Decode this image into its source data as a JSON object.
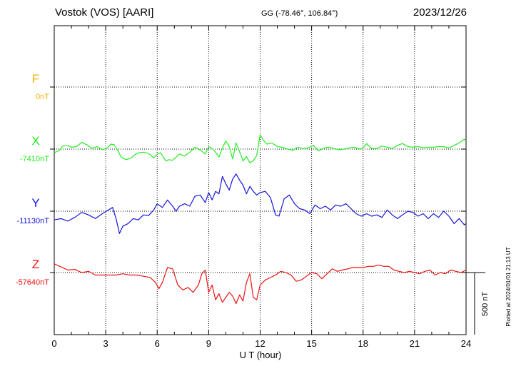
{
  "header": {
    "station": "Vostok (VOS)  [AARI]",
    "coords": "GG (-78.46°, 106.84°)",
    "date": "2023/12/26"
  },
  "footer": {
    "xlabel": "U T (hour)",
    "plotted": "Plotted at 2024/01/01 21:13 UT",
    "scale_label": "500 nT"
  },
  "chart_data": {
    "type": "line",
    "xlabel": "U T (hour)",
    "ylabel": "",
    "xlim": [
      0,
      24
    ],
    "x_ticks": [
      0,
      3,
      6,
      9,
      12,
      15,
      18,
      21,
      24
    ],
    "tick_labels": [
      "0",
      "3",
      "6",
      "9",
      "12",
      "15",
      "18",
      "21",
      "24"
    ],
    "grid": true,
    "scale_nT": 500,
    "series": [
      {
        "name": "F",
        "baseline_label": "0nT",
        "color": "#f0b000",
        "x": [],
        "y": []
      },
      {
        "name": "X",
        "baseline_label": "-7410nT",
        "color": "#22ee22",
        "x": [
          0,
          0.3,
          0.5,
          0.8,
          1.0,
          1.3,
          1.6,
          1.9,
          2.2,
          2.5,
          2.8,
          3.1,
          3.3,
          3.5,
          3.7,
          3.9,
          4.2,
          4.5,
          4.7,
          4.9,
          5.2,
          5.5,
          5.8,
          6.0,
          6.2,
          6.5,
          6.7,
          6.9,
          7.1,
          7.3,
          7.6,
          7.9,
          8.2,
          8.5,
          8.8,
          9.0,
          9.2,
          9.4,
          9.6,
          9.8,
          10.0,
          10.2,
          10.4,
          10.6,
          10.8,
          11.0,
          11.2,
          11.4,
          11.6,
          11.8,
          12.0,
          12.2,
          12.4,
          12.7,
          13.0,
          13.3,
          13.6,
          13.9,
          14.2,
          14.5,
          14.8,
          15.1,
          15.4,
          15.7,
          16.0,
          16.3,
          16.6,
          16.9,
          17.2,
          17.5,
          17.8,
          18.0,
          18.2,
          18.5,
          18.8,
          19.1,
          19.4,
          19.7,
          20.0,
          20.3,
          20.6,
          20.9,
          21.2,
          21.5,
          21.8,
          22.1,
          22.4,
          22.7,
          23.0,
          23.3,
          23.6,
          23.9,
          24.0
        ],
        "y": [
          -30,
          -10,
          25,
          30,
          15,
          20,
          55,
          35,
          5,
          20,
          -5,
          10,
          40,
          35,
          -10,
          -65,
          -85,
          -70,
          -45,
          -30,
          -25,
          -35,
          -70,
          -40,
          -30,
          -95,
          -85,
          -90,
          -65,
          -40,
          -55,
          -25,
          15,
          -5,
          -40,
          20,
          5,
          -25,
          -65,
          10,
          65,
          20,
          -80,
          50,
          -20,
          -95,
          -60,
          -110,
          -95,
          -50,
          115,
          70,
          40,
          50,
          20,
          15,
          0,
          -10,
          15,
          5,
          10,
          30,
          -15,
          10,
          15,
          5,
          -5,
          0,
          10,
          15,
          0,
          10,
          45,
          5,
          5,
          25,
          15,
          5,
          30,
          45,
          20,
          15,
          20,
          10,
          15,
          15,
          20,
          20,
          10,
          30,
          50,
          80,
          70
        ]
      },
      {
        "name": "Y",
        "baseline_label": "-11130nT",
        "color": "#1414dd",
        "x": [
          0,
          0.4,
          0.8,
          1.2,
          1.6,
          2.0,
          2.4,
          2.8,
          3.1,
          3.4,
          3.6,
          3.8,
          4.0,
          4.3,
          4.6,
          4.9,
          5.2,
          5.5,
          5.8,
          6.0,
          6.3,
          6.6,
          6.9,
          7.1,
          7.3,
          7.6,
          7.9,
          8.2,
          8.5,
          8.8,
          9.0,
          9.2,
          9.4,
          9.6,
          9.8,
          10.0,
          10.2,
          10.4,
          10.6,
          10.8,
          11.0,
          11.2,
          11.4,
          11.6,
          11.8,
          12.0,
          12.3,
          12.6,
          12.9,
          13.1,
          13.4,
          13.7,
          14.0,
          14.3,
          14.6,
          14.9,
          15.2,
          15.5,
          15.8,
          16.1,
          16.4,
          16.7,
          17.0,
          17.3,
          17.6,
          17.9,
          18.2,
          18.5,
          18.8,
          19.1,
          19.4,
          19.7,
          20.0,
          20.3,
          20.6,
          20.9,
          21.2,
          21.5,
          21.8,
          22.1,
          22.4,
          22.7,
          23.0,
          23.3,
          23.6,
          23.9,
          24.0
        ],
        "y": [
          -70,
          -60,
          -80,
          -50,
          -10,
          -30,
          -60,
          -20,
          5,
          30,
          -60,
          -180,
          -120,
          -100,
          -60,
          -70,
          -30,
          -35,
          10,
          60,
          30,
          90,
          40,
          0,
          40,
          60,
          40,
          120,
          130,
          70,
          150,
          90,
          160,
          140,
          280,
          220,
          170,
          260,
          300,
          250,
          210,
          140,
          200,
          160,
          130,
          150,
          160,
          110,
          -30,
          -40,
          100,
          130,
          60,
          20,
          10,
          -20,
          50,
          20,
          40,
          10,
          50,
          40,
          60,
          20,
          -20,
          -40,
          -20,
          -40,
          -30,
          -50,
          10,
          -30,
          -60,
          -30,
          0,
          -10,
          -40,
          -20,
          -60,
          -20,
          -50,
          0,
          -40,
          -100,
          -60,
          -110,
          -100
        ]
      },
      {
        "name": "Z",
        "baseline_label": "-57640nT",
        "color": "#ee1111",
        "x": [
          0,
          0.4,
          0.8,
          1.2,
          1.6,
          2.0,
          2.4,
          2.8,
          3.2,
          3.6,
          4.0,
          4.4,
          4.8,
          5.2,
          5.6,
          5.9,
          6.1,
          6.3,
          6.6,
          6.9,
          7.2,
          7.5,
          7.8,
          8.1,
          8.4,
          8.6,
          8.8,
          9.0,
          9.2,
          9.4,
          9.6,
          9.8,
          10.0,
          10.2,
          10.4,
          10.6,
          10.8,
          11.0,
          11.2,
          11.4,
          11.6,
          11.8,
          12.0,
          12.3,
          12.6,
          12.9,
          13.2,
          13.5,
          13.8,
          14.1,
          14.4,
          14.7,
          15.0,
          15.3,
          15.6,
          15.9,
          16.2,
          16.5,
          16.8,
          17.1,
          17.4,
          17.7,
          18.0,
          18.3,
          18.6,
          18.9,
          19.2,
          19.5,
          19.8,
          20.1,
          20.4,
          20.7,
          21.0,
          21.3,
          21.6,
          21.9,
          22.2,
          22.5,
          22.8,
          23.1,
          23.4,
          23.7,
          24.0
        ],
        "y": [
          70,
          45,
          20,
          25,
          0,
          10,
          -20,
          -20,
          -20,
          -20,
          -10,
          -20,
          -20,
          -30,
          -40,
          -80,
          -130,
          -80,
          40,
          30,
          -100,
          -140,
          -120,
          -160,
          -100,
          -10,
          20,
          -160,
          -100,
          -220,
          -170,
          -240,
          -200,
          -160,
          -190,
          -250,
          -180,
          -230,
          -80,
          -10,
          -200,
          -220,
          -100,
          -60,
          -40,
          -20,
          10,
          0,
          -20,
          -70,
          -60,
          -30,
          0,
          -10,
          -50,
          -10,
          30,
          10,
          20,
          30,
          40,
          40,
          40,
          50,
          50,
          60,
          50,
          50,
          20,
          10,
          0,
          10,
          0,
          -10,
          10,
          20,
          -20,
          0,
          -10,
          20,
          10,
          0,
          20
        ]
      }
    ]
  }
}
